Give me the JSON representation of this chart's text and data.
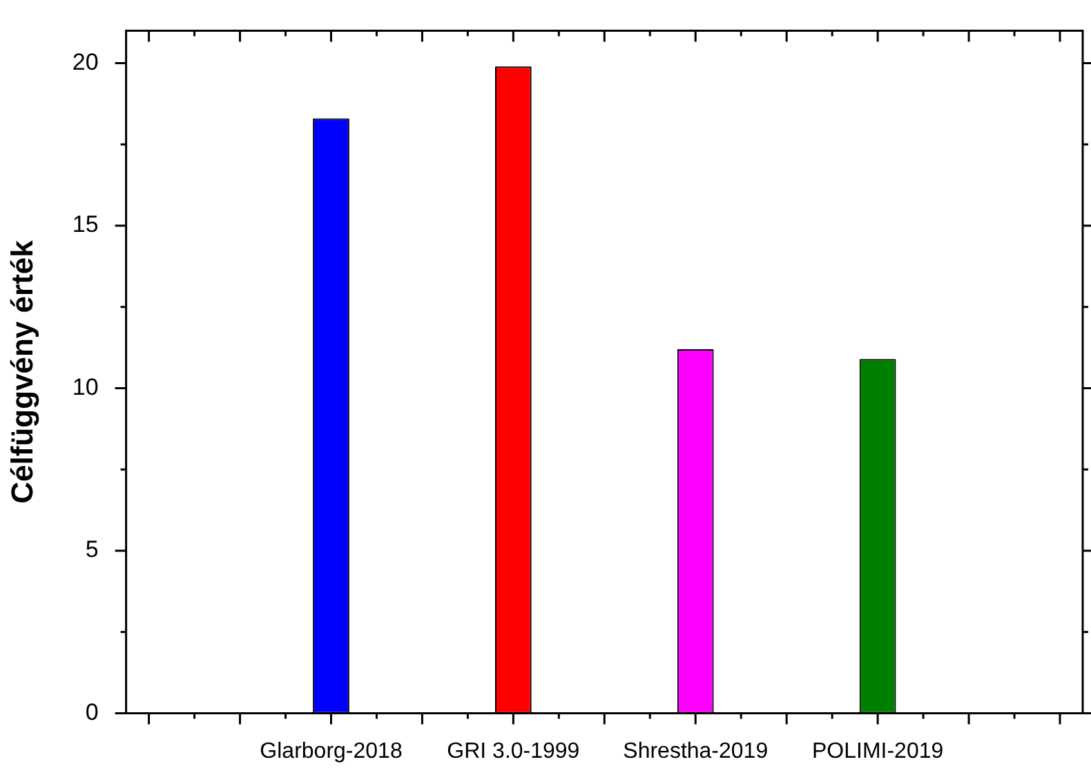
{
  "chart_data": {
    "type": "bar",
    "ylabel": "Célfüggvény érték",
    "categories": [
      "Glarborg-2018",
      "GRI 3.0-1999",
      "Shrestha-2019",
      "POLIMI-2019"
    ],
    "values": [
      18.3,
      19.9,
      11.2,
      10.9
    ],
    "colors": [
      "#0000ff",
      "#ff0000",
      "#ff00ff",
      "#008000"
    ],
    "ylim": [
      0,
      21
    ],
    "yticks": [
      0,
      {
        "value": 2.5,
        "label": null
      },
      5,
      {
        "value": 7.5,
        "label": null
      },
      10,
      {
        "value": 12.5,
        "label": null
      },
      15,
      {
        "value": 17.5,
        "label": null
      },
      20
    ]
  }
}
